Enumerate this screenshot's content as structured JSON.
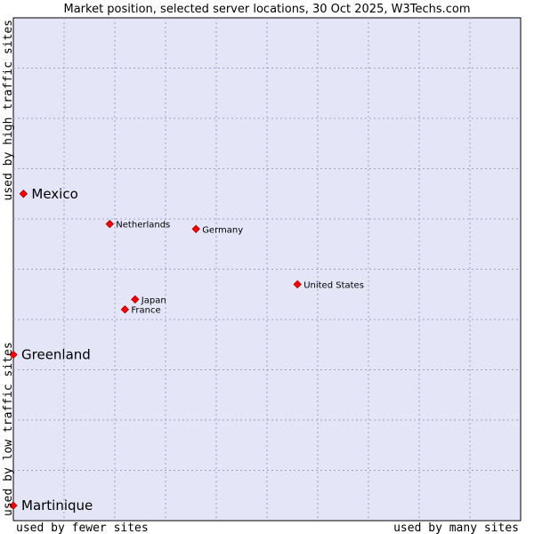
{
  "chart_data": {
    "type": "scatter",
    "title": "Market position, selected server locations, 30 Oct 2025, W3Techs.com",
    "xlabel_left": "used by fewer sites",
    "xlabel_right": "used by many sites",
    "ylabel_bottom": "used by low traffic sites",
    "ylabel_top": "used by high traffic sites",
    "xlim": [
      0,
      10
    ],
    "ylim": [
      0,
      10
    ],
    "grid": true,
    "colors": {
      "background": "#e4e6f8",
      "marker": "#ff0000",
      "grid": "#a0a0c0"
    },
    "points": [
      {
        "label": "Mexico",
        "x": 0.2,
        "y": 6.5,
        "emphasis": true
      },
      {
        "label": "Greenland",
        "x": 0.0,
        "y": 3.3,
        "emphasis": true
      },
      {
        "label": "Martinique",
        "x": 0.0,
        "y": 0.3,
        "emphasis": true
      },
      {
        "label": "Netherlands",
        "x": 1.9,
        "y": 5.9,
        "emphasis": false
      },
      {
        "label": "Germany",
        "x": 3.6,
        "y": 5.8,
        "emphasis": false
      },
      {
        "label": "United States",
        "x": 5.6,
        "y": 4.7,
        "emphasis": false
      },
      {
        "label": "Japan",
        "x": 2.4,
        "y": 4.4,
        "emphasis": false
      },
      {
        "label": "France",
        "x": 2.2,
        "y": 4.2,
        "emphasis": false
      }
    ]
  }
}
